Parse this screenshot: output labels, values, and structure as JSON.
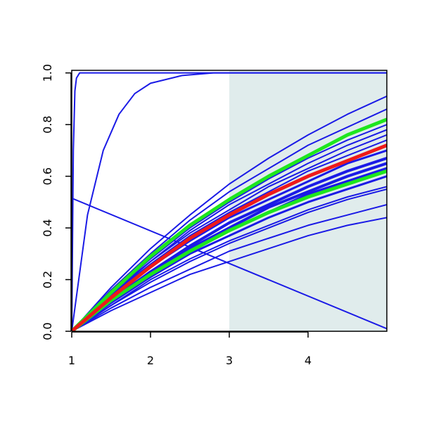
{
  "chart_data": {
    "type": "line",
    "x": [
      1,
      1.5,
      2,
      2.5,
      3,
      3.5,
      4,
      4.5,
      5
    ],
    "series": [
      {
        "color": "#1a1ae6",
        "line_width": 2,
        "x": [
          1,
          1.02,
          1.04,
          1.06,
          1.1,
          1.2,
          5
        ],
        "values": [
          0,
          0.7,
          0.93,
          0.98,
          1,
          1,
          1
        ]
      },
      {
        "color": "#1a1ae6",
        "line_width": 2,
        "x": [
          1,
          1.2,
          1.4,
          1.6,
          1.8,
          2,
          2.4,
          2.8,
          5
        ],
        "values": [
          0,
          0.45,
          0.7,
          0.84,
          0.92,
          0.96,
          0.99,
          1,
          1
        ]
      },
      {
        "color": "#1a1ae6",
        "line_width": 2,
        "x": [
          1,
          5
        ],
        "values": [
          0.515,
          0.01
        ]
      },
      {
        "color": "#1a1ae6",
        "line_width": 2,
        "values": [
          0,
          0.17,
          0.32,
          0.45,
          0.57,
          0.67,
          0.76,
          0.84,
          0.91
        ]
      },
      {
        "color": "#1a1ae6",
        "line_width": 2,
        "values": [
          0,
          0.16,
          0.3,
          0.43,
          0.54,
          0.63,
          0.72,
          0.79,
          0.86
        ]
      },
      {
        "color": "#1a1ae6",
        "line_width": 2,
        "values": [
          0,
          0.15,
          0.28,
          0.4,
          0.5,
          0.59,
          0.67,
          0.74,
          0.8
        ]
      },
      {
        "color": "#1a1ae6",
        "line_width": 2,
        "values": [
          0,
          0.15,
          0.27,
          0.39,
          0.49,
          0.57,
          0.65,
          0.72,
          0.78
        ]
      },
      {
        "color": "#1a1ae6",
        "line_width": 2,
        "values": [
          0,
          0.14,
          0.27,
          0.38,
          0.47,
          0.56,
          0.63,
          0.7,
          0.76
        ]
      },
      {
        "color": "#1a1ae6",
        "line_width": 2,
        "values": [
          0,
          0.14,
          0.26,
          0.37,
          0.46,
          0.54,
          0.62,
          0.68,
          0.74
        ]
      },
      {
        "color": "#1a1ae6",
        "line_width": 3,
        "values": [
          0,
          0.13,
          0.25,
          0.35,
          0.44,
          0.51,
          0.58,
          0.65,
          0.7
        ]
      },
      {
        "color": "#1a1ae6",
        "line_width": 4,
        "values": [
          0,
          0.12,
          0.23,
          0.33,
          0.42,
          0.49,
          0.56,
          0.62,
          0.67
        ]
      },
      {
        "color": "#1a1ae6",
        "line_width": 4,
        "values": [
          0,
          0.12,
          0.23,
          0.32,
          0.4,
          0.48,
          0.54,
          0.6,
          0.65
        ]
      },
      {
        "color": "#1a1ae6",
        "line_width": 4,
        "values": [
          0,
          0.12,
          0.22,
          0.31,
          0.39,
          0.46,
          0.53,
          0.58,
          0.63
        ]
      },
      {
        "color": "#1a1ae6",
        "line_width": 3,
        "values": [
          0,
          0.11,
          0.21,
          0.3,
          0.37,
          0.44,
          0.5,
          0.55,
          0.6
        ]
      },
      {
        "color": "#1a1ae6",
        "line_width": 2,
        "values": [
          0,
          0.1,
          0.2,
          0.28,
          0.35,
          0.41,
          0.47,
          0.52,
          0.56
        ]
      },
      {
        "color": "#1a1ae6",
        "line_width": 2,
        "values": [
          0,
          0.1,
          0.19,
          0.27,
          0.34,
          0.4,
          0.46,
          0.51,
          0.55
        ]
      },
      {
        "color": "#1a1ae6",
        "line_width": 2,
        "values": [
          0,
          0.09,
          0.17,
          0.24,
          0.31,
          0.36,
          0.41,
          0.45,
          0.49
        ]
      },
      {
        "color": "#1a1ae6",
        "line_width": 2,
        "values": [
          0,
          0.08,
          0.15,
          0.22,
          0.27,
          0.32,
          0.37,
          0.41,
          0.44
        ]
      },
      {
        "color": "#1ee61e",
        "line_width": 5,
        "values": [
          0,
          0.15,
          0.29,
          0.41,
          0.51,
          0.6,
          0.68,
          0.76,
          0.82
        ]
      },
      {
        "color": "#1ee61e",
        "line_width": 5,
        "values": [
          0,
          0.12,
          0.22,
          0.31,
          0.39,
          0.46,
          0.52,
          0.57,
          0.62
        ]
      },
      {
        "color": "#ee1a1a",
        "line_width": 5,
        "values": [
          0,
          0.13,
          0.25,
          0.36,
          0.45,
          0.53,
          0.6,
          0.66,
          0.72
        ]
      }
    ],
    "shaded_region": [
      3,
      5
    ],
    "shade_color": "#e0ecec",
    "xlim": [
      1,
      5
    ],
    "ylim": [
      0,
      1.01
    ],
    "xticks": [
      1,
      2,
      3,
      4
    ],
    "yticks": [
      {
        "value": 0,
        "label": "0.0"
      },
      {
        "value": 0.2,
        "label": "0.2"
      },
      {
        "value": 0.4,
        "label": "0.4"
      },
      {
        "value": 0.6,
        "label": "0.6"
      },
      {
        "value": 0.8,
        "label": "0.8"
      },
      {
        "value": 1,
        "label": "1.0"
      }
    ]
  }
}
